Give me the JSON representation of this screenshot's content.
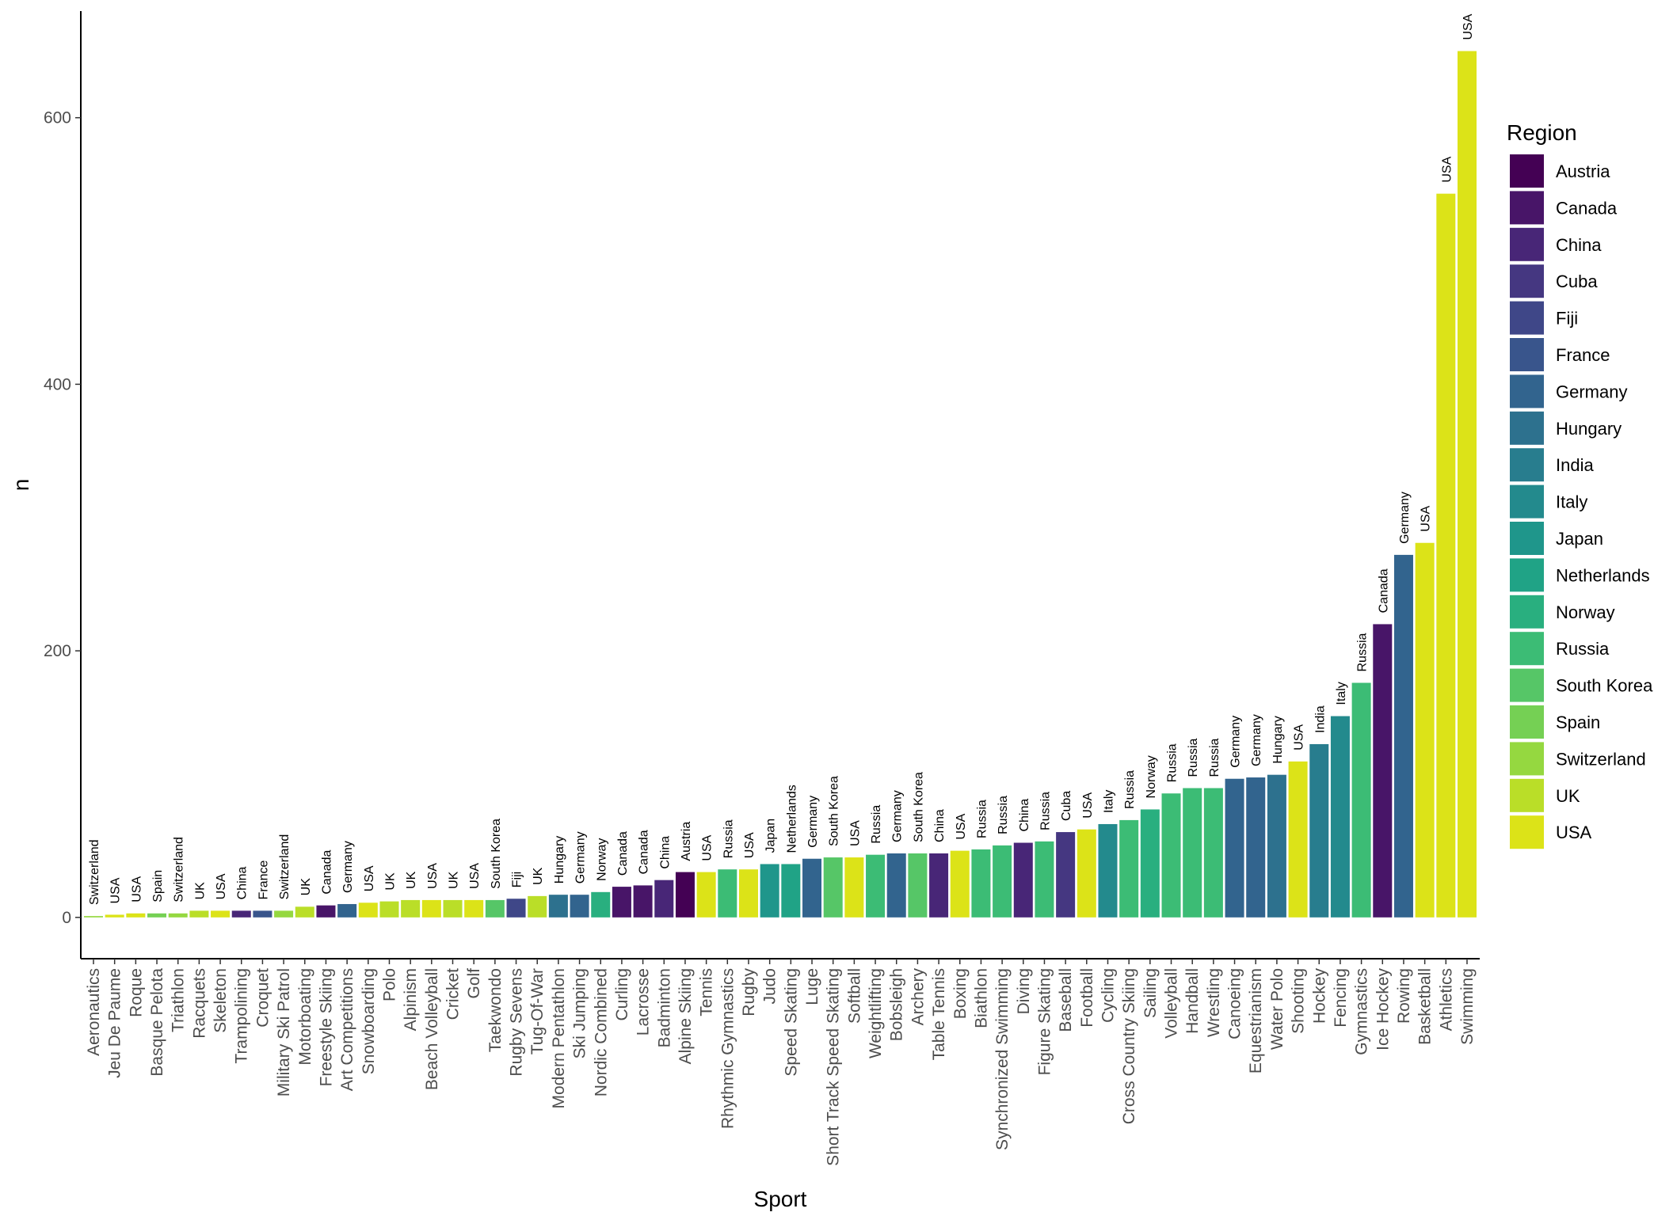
{
  "chart_data": {
    "type": "bar",
    "xlabel": "Sport",
    "ylabel": "n",
    "ylim": [
      -31,
      680
    ],
    "yticks": [
      0,
      200,
      400,
      600
    ],
    "legend": {
      "title": "Region",
      "position": "right"
    },
    "regions": [
      {
        "name": "Austria",
        "color": "#440154"
      },
      {
        "name": "Canada",
        "color": "#481568"
      },
      {
        "name": "China",
        "color": "#482677"
      },
      {
        "name": "Cuba",
        "color": "#453781"
      },
      {
        "name": "Fiji",
        "color": "#3F4788"
      },
      {
        "name": "France",
        "color": "#39558C"
      },
      {
        "name": "Germany",
        "color": "#32648E"
      },
      {
        "name": "Hungary",
        "color": "#2D718E"
      },
      {
        "name": "India",
        "color": "#287D8E"
      },
      {
        "name": "Italy",
        "color": "#238A8D"
      },
      {
        "name": "Japan",
        "color": "#1F968B"
      },
      {
        "name": "Netherlands",
        "color": "#20A386"
      },
      {
        "name": "Norway",
        "color": "#29AF7F"
      },
      {
        "name": "Russia",
        "color": "#3CBC75"
      },
      {
        "name": "South Korea",
        "color": "#56C667"
      },
      {
        "name": "Spain",
        "color": "#75D054"
      },
      {
        "name": "Switzerland",
        "color": "#95D840"
      },
      {
        "name": "UK",
        "color": "#BADE28"
      },
      {
        "name": "USA",
        "color": "#DCE318"
      }
    ],
    "bars": [
      {
        "sport": "Aeronautics",
        "region": "Switzerland",
        "n": 1
      },
      {
        "sport": "Jeu De Paume",
        "region": "USA",
        "n": 2
      },
      {
        "sport": "Roque",
        "region": "USA",
        "n": 3
      },
      {
        "sport": "Basque Pelota",
        "region": "Spain",
        "n": 3
      },
      {
        "sport": "Triathlon",
        "region": "Switzerland",
        "n": 3
      },
      {
        "sport": "Racquets",
        "region": "UK",
        "n": 5
      },
      {
        "sport": "Skeleton",
        "region": "USA",
        "n": 5
      },
      {
        "sport": "Trampolining",
        "region": "China",
        "n": 5
      },
      {
        "sport": "Croquet",
        "region": "France",
        "n": 5
      },
      {
        "sport": "Military Ski Patrol",
        "region": "Switzerland",
        "n": 5
      },
      {
        "sport": "Motorboating",
        "region": "UK",
        "n": 8
      },
      {
        "sport": "Freestyle Skiing",
        "region": "Canada",
        "n": 9
      },
      {
        "sport": "Art Competitions",
        "region": "Germany",
        "n": 10
      },
      {
        "sport": "Snowboarding",
        "region": "USA",
        "n": 11
      },
      {
        "sport": "Polo",
        "region": "UK",
        "n": 12
      },
      {
        "sport": "Alpinism",
        "region": "UK",
        "n": 13
      },
      {
        "sport": "Beach Volleyball",
        "region": "USA",
        "n": 13
      },
      {
        "sport": "Cricket",
        "region": "UK",
        "n": 13
      },
      {
        "sport": "Golf",
        "region": "USA",
        "n": 13
      },
      {
        "sport": "Taekwondo",
        "region": "South Korea",
        "n": 13
      },
      {
        "sport": "Rugby Sevens",
        "region": "Fiji",
        "n": 14
      },
      {
        "sport": "Tug-Of-War",
        "region": "UK",
        "n": 16
      },
      {
        "sport": "Modern Pentathlon",
        "region": "Hungary",
        "n": 17
      },
      {
        "sport": "Ski Jumping",
        "region": "Germany",
        "n": 17
      },
      {
        "sport": "Nordic Combined",
        "region": "Norway",
        "n": 19
      },
      {
        "sport": "Curling",
        "region": "Canada",
        "n": 23
      },
      {
        "sport": "Lacrosse",
        "region": "Canada",
        "n": 24
      },
      {
        "sport": "Badminton",
        "region": "China",
        "n": 28
      },
      {
        "sport": "Alpine Skiing",
        "region": "Austria",
        "n": 34
      },
      {
        "sport": "Tennis",
        "region": "USA",
        "n": 34
      },
      {
        "sport": "Rhythmic Gymnastics",
        "region": "Russia",
        "n": 36
      },
      {
        "sport": "Rugby",
        "region": "USA",
        "n": 36
      },
      {
        "sport": "Judo",
        "region": "Japan",
        "n": 40
      },
      {
        "sport": "Speed Skating",
        "region": "Netherlands",
        "n": 40
      },
      {
        "sport": "Luge",
        "region": "Germany",
        "n": 44
      },
      {
        "sport": "Short Track Speed Skating",
        "region": "South Korea",
        "n": 45
      },
      {
        "sport": "Softball",
        "region": "USA",
        "n": 45
      },
      {
        "sport": "Weightlifting",
        "region": "Russia",
        "n": 47
      },
      {
        "sport": "Bobsleigh",
        "region": "Germany",
        "n": 48
      },
      {
        "sport": "Archery",
        "region": "South Korea",
        "n": 48
      },
      {
        "sport": "Table Tennis",
        "region": "China",
        "n": 48
      },
      {
        "sport": "Boxing",
        "region": "USA",
        "n": 50
      },
      {
        "sport": "Biathlon",
        "region": "Russia",
        "n": 51
      },
      {
        "sport": "Synchronized Swimming",
        "region": "Russia",
        "n": 54
      },
      {
        "sport": "Diving",
        "region": "China",
        "n": 56
      },
      {
        "sport": "Figure Skating",
        "region": "Russia",
        "n": 57
      },
      {
        "sport": "Baseball",
        "region": "Cuba",
        "n": 64
      },
      {
        "sport": "Football",
        "region": "USA",
        "n": 66
      },
      {
        "sport": "Cycling",
        "region": "Italy",
        "n": 70
      },
      {
        "sport": "Cross Country Skiing",
        "region": "Russia",
        "n": 73
      },
      {
        "sport": "Sailing",
        "region": "Norway",
        "n": 81
      },
      {
        "sport": "Volleyball",
        "region": "Russia",
        "n": 93
      },
      {
        "sport": "Handball",
        "region": "Russia",
        "n": 97
      },
      {
        "sport": "Wrestling",
        "region": "Russia",
        "n": 97
      },
      {
        "sport": "Canoeing",
        "region": "Germany",
        "n": 104
      },
      {
        "sport": "Equestrianism",
        "region": "Germany",
        "n": 105
      },
      {
        "sport": "Water Polo",
        "region": "Hungary",
        "n": 107
      },
      {
        "sport": "Shooting",
        "region": "USA",
        "n": 117
      },
      {
        "sport": "Hockey",
        "region": "India",
        "n": 130
      },
      {
        "sport": "Fencing",
        "region": "Italy",
        "n": 151
      },
      {
        "sport": "Gymnastics",
        "region": "Russia",
        "n": 176
      },
      {
        "sport": "Ice Hockey",
        "region": "Canada",
        "n": 220
      },
      {
        "sport": "Rowing",
        "region": "Germany",
        "n": 272
      },
      {
        "sport": "Basketball",
        "region": "USA",
        "n": 281
      },
      {
        "sport": "Athletics",
        "region": "USA",
        "n": 543
      },
      {
        "sport": "Swimming",
        "region": "USA",
        "n": 650
      }
    ]
  }
}
